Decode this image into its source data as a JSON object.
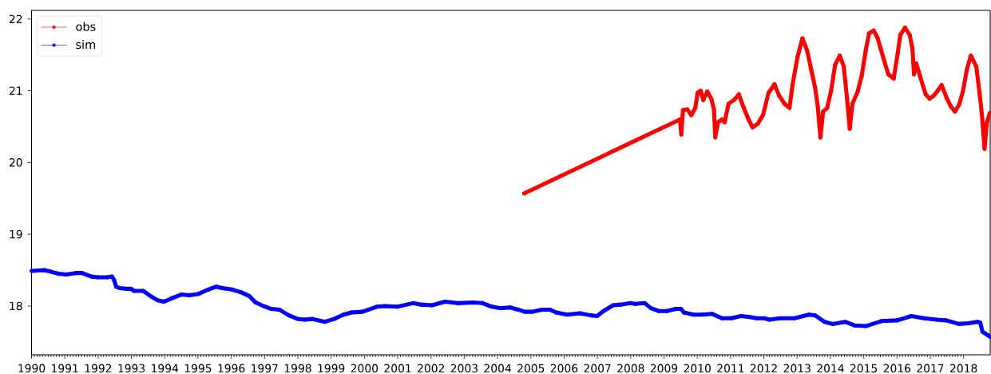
{
  "chart_data": {
    "type": "line",
    "xlim": [
      1990,
      2018.8
    ],
    "ylim": [
      17.32,
      22.12
    ],
    "xticks": [
      1990,
      1991,
      1992,
      1993,
      1994,
      1995,
      1996,
      1997,
      1998,
      1999,
      2000,
      2001,
      2002,
      2003,
      2004,
      2005,
      2006,
      2007,
      2008,
      2009,
      2010,
      2011,
      2012,
      2013,
      2014,
      2015,
      2016,
      2017,
      2018
    ],
    "yticks": [
      18,
      19,
      20,
      21,
      22
    ],
    "legend": "top left",
    "marker": "circle",
    "series": [
      {
        "name": "obs",
        "color": "#ff0000",
        "x": [
          2004.8,
          2009.48,
          2009.52,
          2009.57,
          2009.7,
          2009.82,
          2009.94,
          2010.01,
          2010.1,
          2010.18,
          2010.3,
          2010.42,
          2010.5,
          2010.54,
          2010.62,
          2010.74,
          2010.82,
          2010.94,
          2011.1,
          2011.25,
          2011.38,
          2011.54,
          2011.66,
          2011.82,
          2011.98,
          2012.14,
          2012.32,
          2012.46,
          2012.62,
          2012.77,
          2012.86,
          2013.01,
          2013.16,
          2013.3,
          2013.42,
          2013.54,
          2013.62,
          2013.7,
          2013.78,
          2013.9,
          2014.02,
          2014.14,
          2014.28,
          2014.4,
          2014.5,
          2014.58,
          2014.66,
          2014.82,
          2014.94,
          2015.06,
          2015.16,
          2015.3,
          2015.42,
          2015.5,
          2015.62,
          2015.74,
          2015.9,
          2016.02,
          2016.1,
          2016.24,
          2016.38,
          2016.46,
          2016.51,
          2016.58,
          2016.7,
          2016.86,
          2016.98,
          2017.1,
          2017.22,
          2017.34,
          2017.5,
          2017.62,
          2017.74,
          2017.86,
          2017.98,
          2018.1,
          2018.22,
          2018.38,
          2018.48,
          2018.55,
          2018.63,
          2018.7,
          2018.79
        ],
        "values": [
          19.57,
          20.6,
          20.39,
          20.73,
          20.74,
          20.66,
          20.76,
          20.97,
          21.0,
          20.87,
          20.99,
          20.89,
          20.74,
          20.35,
          20.56,
          20.6,
          20.56,
          20.82,
          20.87,
          20.95,
          20.78,
          20.6,
          20.49,
          20.54,
          20.67,
          20.97,
          21.09,
          20.93,
          20.82,
          20.76,
          21.08,
          21.47,
          21.73,
          21.56,
          21.3,
          21.04,
          20.78,
          20.35,
          20.71,
          20.76,
          21.0,
          21.36,
          21.49,
          21.34,
          20.89,
          20.47,
          20.82,
          20.99,
          21.21,
          21.56,
          21.8,
          21.84,
          21.73,
          21.6,
          21.41,
          21.23,
          21.17,
          21.52,
          21.78,
          21.88,
          21.78,
          21.6,
          21.23,
          21.38,
          21.19,
          20.95,
          20.89,
          20.93,
          21.0,
          21.08,
          20.89,
          20.78,
          20.71,
          20.8,
          20.99,
          21.3,
          21.49,
          21.34,
          20.97,
          20.67,
          20.19,
          20.56,
          20.69
        ]
      },
      {
        "name": "sim",
        "color": "#0000ff",
        "x": [
          1990.0,
          1990.38,
          1990.57,
          1990.81,
          1991.04,
          1991.33,
          1991.52,
          1991.8,
          1991.99,
          1992.27,
          1992.42,
          1992.48,
          1992.54,
          1992.65,
          1992.84,
          1992.99,
          1993.08,
          1993.36,
          1993.6,
          1993.79,
          1993.98,
          1994.22,
          1994.5,
          1994.74,
          1995.02,
          1995.31,
          1995.55,
          1995.73,
          1996.02,
          1996.3,
          1996.54,
          1996.73,
          1996.97,
          1997.2,
          1997.44,
          1997.73,
          1998.0,
          1998.2,
          1998.44,
          1998.81,
          1999.09,
          1999.37,
          1999.61,
          1999.94,
          2000.37,
          2000.61,
          2000.99,
          2001.46,
          2001.7,
          2002.03,
          2002.42,
          2002.8,
          2003.26,
          2003.55,
          2003.83,
          2004.1,
          2004.38,
          2004.62,
          2004.81,
          2005.05,
          2005.33,
          2005.57,
          2005.76,
          2006.09,
          2006.47,
          2006.8,
          2006.99,
          2007.18,
          2007.47,
          2007.7,
          2007.99,
          2008.13,
          2008.42,
          2008.61,
          2008.84,
          2009.08,
          2009.36,
          2009.51,
          2009.6,
          2009.89,
          2010.12,
          2010.45,
          2010.74,
          2011.02,
          2011.31,
          2011.55,
          2011.78,
          2012.02,
          2012.16,
          2012.49,
          2012.92,
          2013.35,
          2013.54,
          2013.82,
          2014.06,
          2014.44,
          2014.72,
          2015.06,
          2015.53,
          2016.01,
          2016.43,
          2016.81,
          2017.19,
          2017.48,
          2017.86,
          2018.14,
          2018.42,
          2018.5,
          2018.57,
          2018.71,
          2018.8
        ],
        "values": [
          18.49,
          18.5,
          18.48,
          18.45,
          18.44,
          18.46,
          18.46,
          18.41,
          18.4,
          18.4,
          18.41,
          18.36,
          18.27,
          18.25,
          18.24,
          18.24,
          18.21,
          18.21,
          18.13,
          18.08,
          18.06,
          18.11,
          18.16,
          18.15,
          18.17,
          18.23,
          18.27,
          18.25,
          18.23,
          18.19,
          18.14,
          18.05,
          18.0,
          17.96,
          17.95,
          17.87,
          17.82,
          17.81,
          17.82,
          17.78,
          17.82,
          17.88,
          17.91,
          17.92,
          17.99,
          18.0,
          17.99,
          18.04,
          18.02,
          18.01,
          18.06,
          18.04,
          18.05,
          18.04,
          17.99,
          17.97,
          17.98,
          17.95,
          17.92,
          17.92,
          17.95,
          17.95,
          17.91,
          17.88,
          17.9,
          17.87,
          17.86,
          17.93,
          18.01,
          18.02,
          18.04,
          18.03,
          18.04,
          17.97,
          17.93,
          17.93,
          17.96,
          17.96,
          17.91,
          17.88,
          17.88,
          17.89,
          17.83,
          17.83,
          17.86,
          17.85,
          17.83,
          17.83,
          17.81,
          17.83,
          17.83,
          17.88,
          17.87,
          17.78,
          17.75,
          17.78,
          17.73,
          17.72,
          17.79,
          17.8,
          17.86,
          17.83,
          17.81,
          17.8,
          17.75,
          17.76,
          17.78,
          17.77,
          17.64,
          17.6,
          17.57
        ]
      }
    ]
  }
}
